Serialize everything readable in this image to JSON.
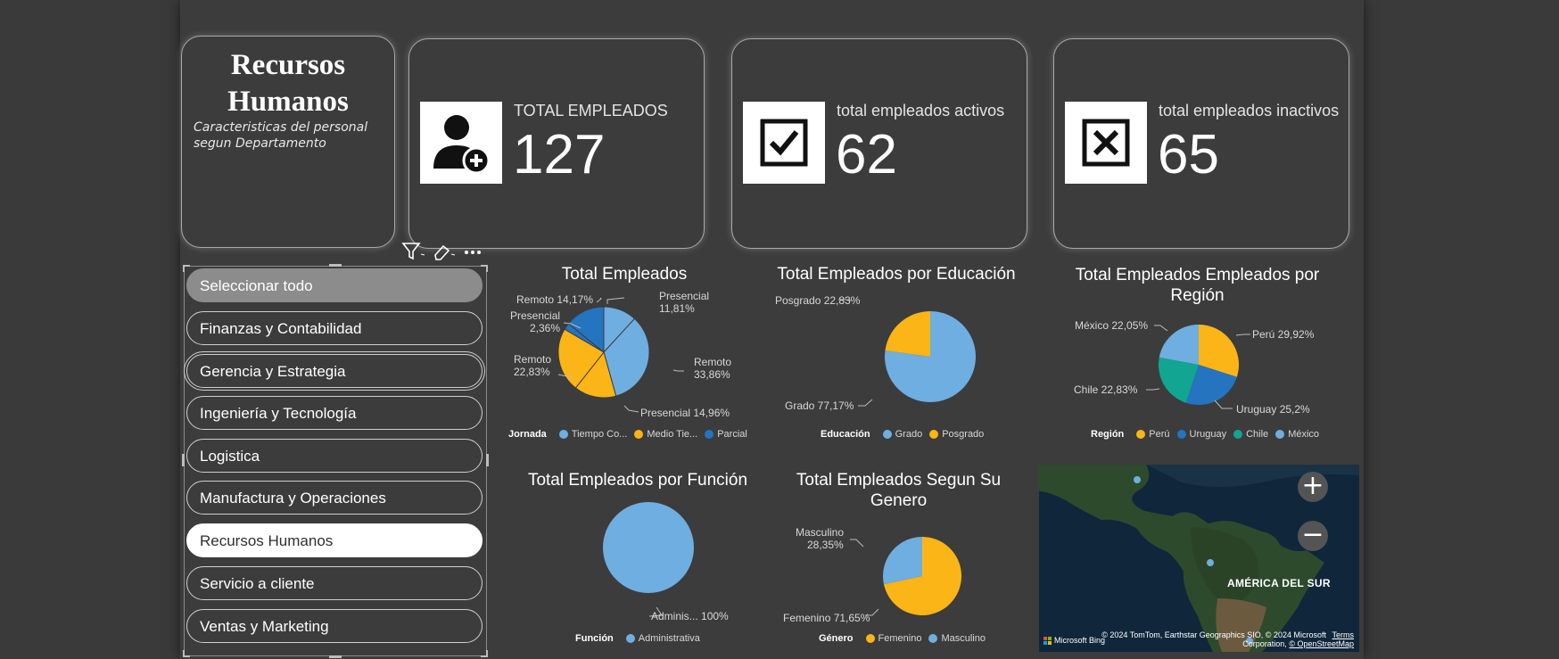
{
  "header": {
    "title_line1": "Recursos",
    "title_line2": "Humanos",
    "subtitle": "Caracteristicas del personal segun Departamento"
  },
  "kpis": [
    {
      "label": "TOTAL EMPLEADOS",
      "value": "127",
      "icon": "person-add-icon"
    },
    {
      "label": "total empleados activos",
      "value": "62",
      "icon": "checkbox-checked-icon"
    },
    {
      "label": "total empleados inactivos",
      "value": "65",
      "icon": "checkbox-x-icon"
    }
  ],
  "slicer": {
    "items": [
      {
        "label": "Seleccionar todo",
        "state": "all"
      },
      {
        "label": "Finanzas y Contabilidad",
        "state": ""
      },
      {
        "label": "Gerencia y Estrategia",
        "state": "focused"
      },
      {
        "label": "Ingeniería y Tecnología",
        "state": ""
      },
      {
        "label": "Logistica",
        "state": ""
      },
      {
        "label": "Manufactura y Operaciones",
        "state": ""
      },
      {
        "label": "Recursos Humanos",
        "state": "selected"
      },
      {
        "label": "Servicio a cliente",
        "state": ""
      },
      {
        "label": "Ventas y Marketing",
        "state": ""
      }
    ]
  },
  "colors": {
    "light_blue": "#6faee0",
    "yellow": "#fbb516",
    "dark_blue": "#2474c0",
    "teal": "#12a591",
    "bg": "#3c3c3c"
  },
  "chart_data": [
    {
      "type": "pie",
      "title": "Total Empleados",
      "legend_title": "Jornada",
      "legend": [
        "Tiempo Co...",
        "Medio Tie...",
        "Parcial"
      ],
      "slices": [
        {
          "label": "Presencial 11,81%",
          "value": 11.81,
          "series": "Tiempo Co..."
        },
        {
          "label": "Remoto 33,86%",
          "value": 33.86,
          "series": "Tiempo Co..."
        },
        {
          "label": "Presencial 14,96%",
          "value": 14.96,
          "series": "Medio Tie..."
        },
        {
          "label": "Remoto 22,83%",
          "value": 22.83,
          "series": "Medio Tie..."
        },
        {
          "label": "Presencial 2,36%",
          "value": 2.36,
          "series": "Parcial"
        },
        {
          "label": "Remoto 14,17%",
          "value": 14.17,
          "series": "Parcial"
        }
      ]
    },
    {
      "type": "pie",
      "title": "Total Empleados por Educación",
      "legend_title": "Educación",
      "legend": [
        "Grado",
        "Posgrado"
      ],
      "slices": [
        {
          "label": "Grado 77,17%",
          "value": 77.17,
          "series": "Grado"
        },
        {
          "label": "Posgrado 22,83%",
          "value": 22.83,
          "series": "Posgrado"
        }
      ]
    },
    {
      "type": "pie",
      "title": "Total Empleados Empleados por Región",
      "legend_title": "Región",
      "legend": [
        "Perú",
        "Uruguay",
        "Chile",
        "México"
      ],
      "slices": [
        {
          "label": "Perú 29,92%",
          "value": 29.92,
          "series": "Perú"
        },
        {
          "label": "Uruguay 25,2%",
          "value": 25.2,
          "series": "Uruguay"
        },
        {
          "label": "Chile 22,83%",
          "value": 22.83,
          "series": "Chile"
        },
        {
          "label": "México 22,05%",
          "value": 22.05,
          "series": "México"
        }
      ]
    },
    {
      "type": "pie",
      "title": "Total Empleados por Función",
      "legend_title": "Función",
      "legend": [
        "Administrativa"
      ],
      "slices": [
        {
          "label": "Adminis... 100%",
          "value": 100,
          "series": "Administrativa"
        }
      ]
    },
    {
      "type": "pie",
      "title": "Total Empleados Segun Su Genero",
      "legend_title": "Género",
      "legend": [
        "Femenino",
        "Masculino"
      ],
      "slices": [
        {
          "label": "Femenino 71,65%",
          "value": 71.65,
          "series": "Femenino"
        },
        {
          "label": "Masculino 28,35%",
          "value": 28.35,
          "series": "Masculino"
        }
      ]
    }
  ],
  "map": {
    "region_label": "AMÉRICA DEL SUR",
    "zoom_in": "+",
    "zoom_out": "−",
    "brand": "Microsoft Bing",
    "credit_line1": "© 2024 TomTom, Earthstar Geographics SIO, © 2024 Microsoft",
    "credit_terms": "Terms",
    "credit_line2": "Corporation,",
    "credit_osm": "© OpenStreetMap"
  }
}
